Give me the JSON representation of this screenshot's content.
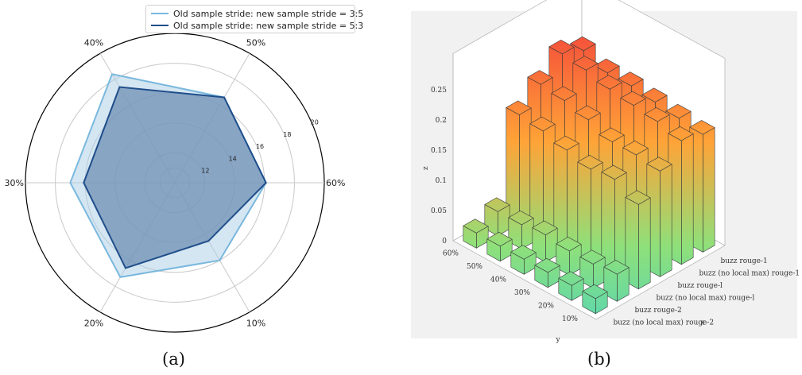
{
  "chart_data": [
    {
      "type": "radar",
      "caption": "(a)",
      "categories": [
        "10%",
        "20%",
        "30%",
        "40%",
        "50%",
        "60%"
      ],
      "category_angles_deg": [
        -60,
        -120,
        180,
        120,
        60,
        0
      ],
      "radial_range": [
        10,
        20
      ],
      "radial_ticks": [
        "12",
        "14",
        "16",
        "18",
        "20"
      ],
      "grid": true,
      "legend_position": "top-center",
      "series": [
        {
          "name": "Old sample stride: new sample stride = 3:5",
          "color": "#7ab8de",
          "fill": "#a9cde6",
          "values": [
            16.0,
            17.3,
            17.0,
            18.4,
            16.6,
            16.1
          ]
        },
        {
          "name": "Old sample stride: new sample stride = 5:3",
          "color": "#1f4e8a",
          "fill": "#6f8fb4",
          "values": [
            14.5,
            16.6,
            16.1,
            17.4,
            16.6,
            16.1
          ]
        }
      ]
    },
    {
      "type": "bar3d",
      "caption": "(b)",
      "xlabel": "x",
      "ylabel": "y",
      "zlabel": "z",
      "x_categories": [
        "buzz (no local max) rouge-2",
        "buzz rouge-2",
        "buzz (no local max) rouge-l",
        "buzz rouge-l",
        "buzz (no local max) rouge-1",
        "buzz rouge-1"
      ],
      "y_categories": [
        "10%",
        "20%",
        "30%",
        "40%",
        "50%",
        "60%"
      ],
      "z_ticks": [
        "0",
        "0.05",
        "0.1",
        "0.15",
        "0.2",
        "0.25"
      ],
      "z_range": [
        0,
        0.25
      ],
      "colormap": [
        "#49d4c0",
        "#8fe07a",
        "#ffa337",
        "#f5503a"
      ],
      "values": [
        [
          0.025,
          0.025,
          0.025,
          0.025,
          0.025,
          0.025
        ],
        [
          0.045,
          0.04,
          0.04,
          0.045,
          0.04,
          0.04
        ],
        [
          0.14,
          0.16,
          0.155,
          0.165,
          0.175,
          0.18
        ],
        [
          0.175,
          0.18,
          0.18,
          0.195,
          0.205,
          0.21
        ],
        [
          0.205,
          0.215,
          0.22,
          0.225,
          0.235,
          0.24
        ],
        [
          0.195,
          0.2,
          0.205,
          0.21,
          0.21,
          0.225
        ]
      ]
    }
  ]
}
